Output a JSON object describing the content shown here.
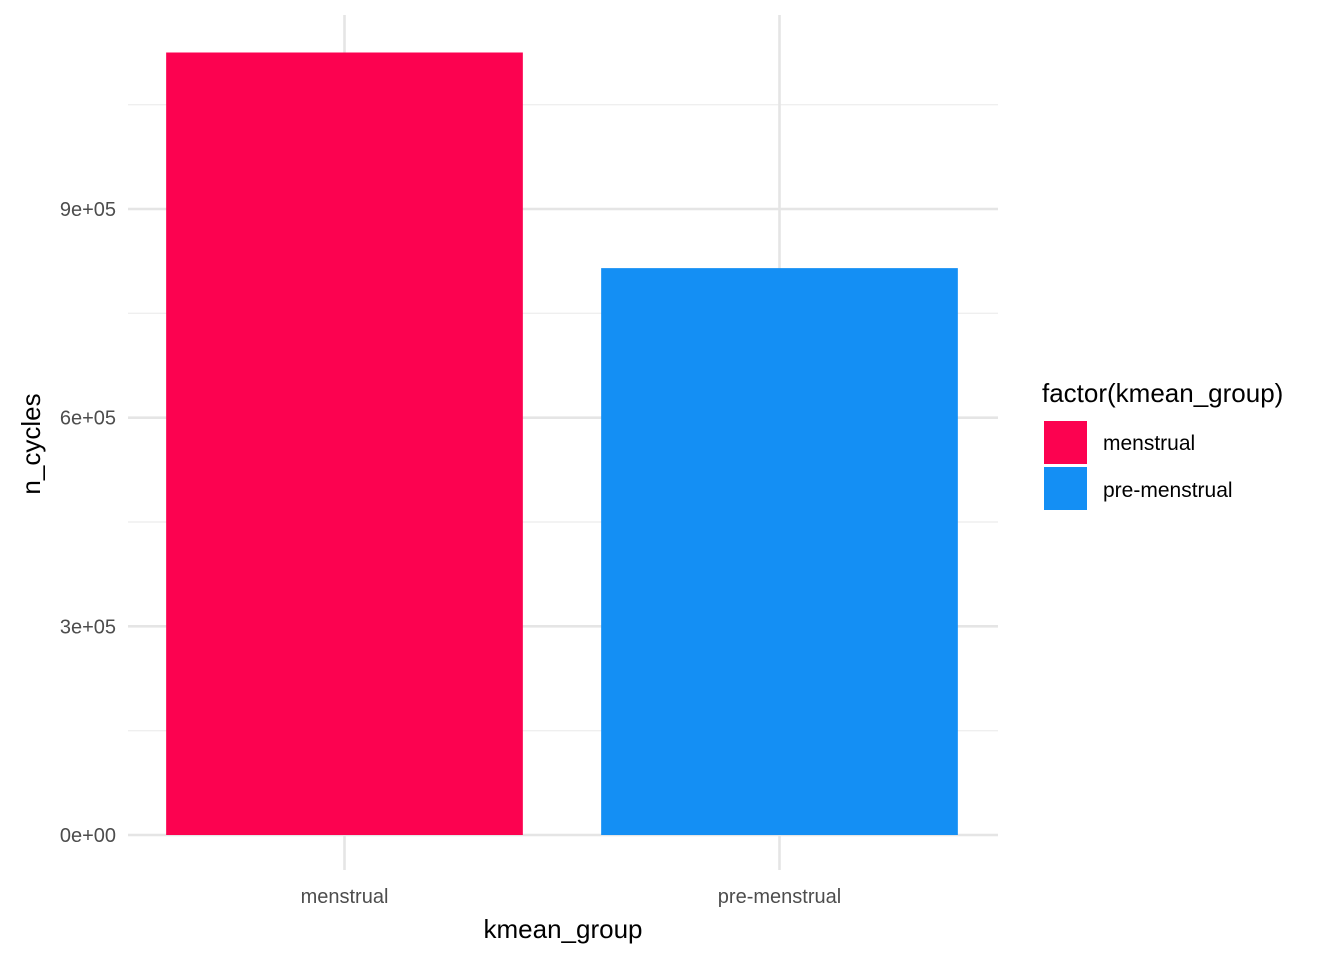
{
  "chart_data": {
    "type": "bar",
    "categories": [
      "menstrual",
      "pre-menstrual"
    ],
    "values": [
      1125000,
      815000
    ],
    "colors": [
      "#FC0250",
      "#148FF4"
    ],
    "xlabel": "kmean_group",
    "ylabel": "n_cycles",
    "ylim": [
      0,
      1180000
    ],
    "yticks": [
      0,
      300000,
      600000,
      900000
    ],
    "ytick_labels": [
      "0e+00",
      "3e+05",
      "6e+05",
      "9e+05"
    ],
    "grid": true,
    "legend": {
      "title": "factor(kmean_group)",
      "placement": "right",
      "entries": [
        {
          "label": "menstrual",
          "color": "#FC0250"
        },
        {
          "label": "pre-menstrual",
          "color": "#148FF4"
        }
      ]
    }
  }
}
